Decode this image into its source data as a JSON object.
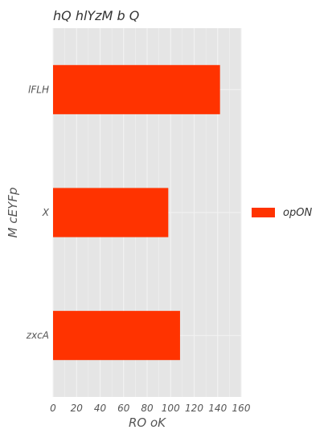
{
  "chart_data": {
    "type": "bar",
    "orientation": "horizontal",
    "title": "hQ hlYzM b Q",
    "xlabel": "RO  oK",
    "ylabel": "M cEYFp",
    "categories": [
      "lFLH",
      "X",
      "zxcA"
    ],
    "series": [
      {
        "name": "opON",
        "values": [
          142,
          98,
          108
        ],
        "color": "#ff3300"
      }
    ],
    "xlim": [
      0,
      160
    ],
    "xticks": [
      "0",
      "20",
      "40",
      "60",
      "80",
      "100",
      "120",
      "140",
      "160"
    ],
    "grid": true,
    "legend_position": "right",
    "background_color": "#e5e5e5",
    "grid_color": "#f2f2f2"
  }
}
